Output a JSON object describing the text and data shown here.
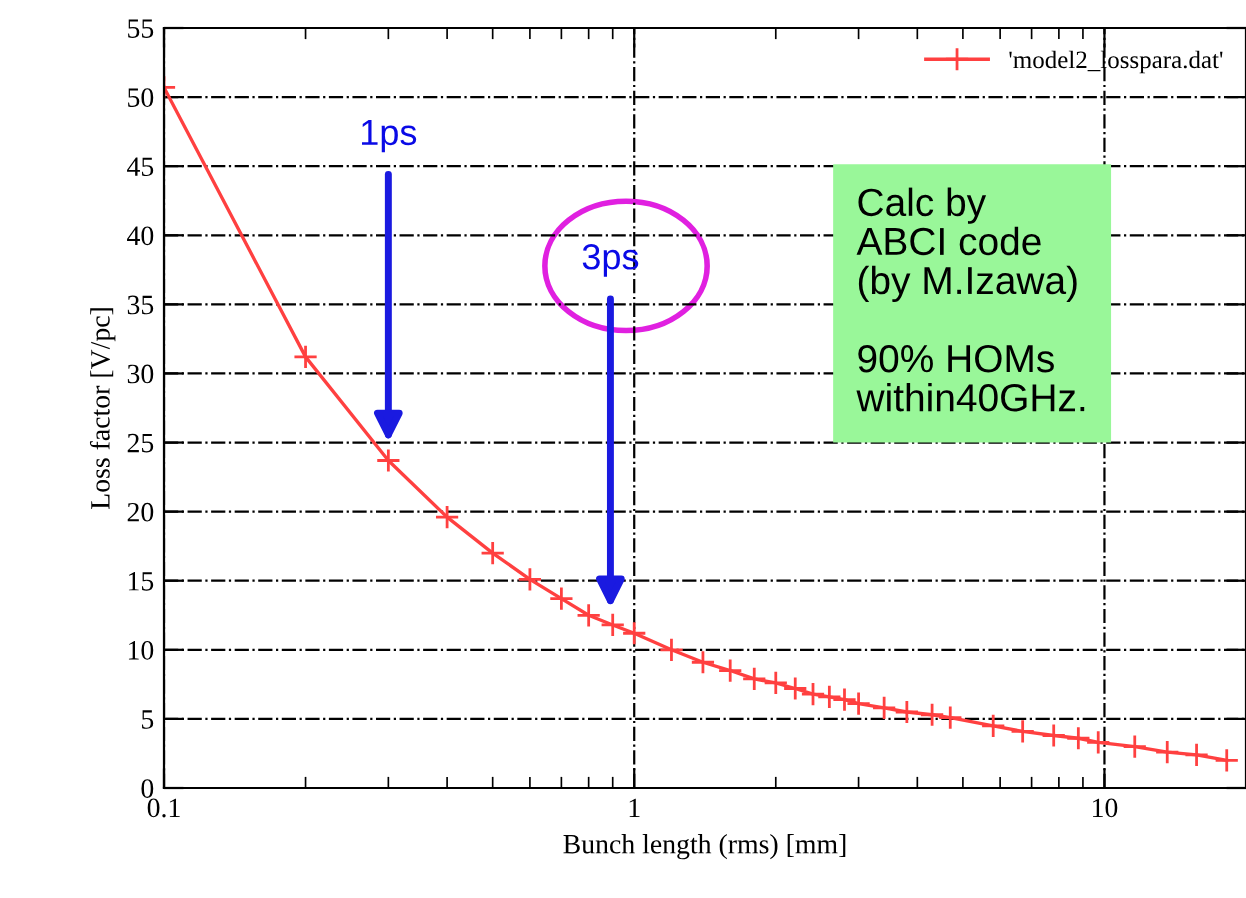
{
  "chart_data": {
    "type": "line",
    "xlabel": "Bunch length (rms) [mm]",
    "ylabel": "Loss factor [V/pc]",
    "log": "x",
    "grid": true,
    "legend": "top right",
    "marker": "cross",
    "line_style": "solid",
    "xlim": [
      0.1,
      20
    ],
    "xticks": [
      0.1,
      1,
      10
    ],
    "ylim": [
      0,
      55
    ],
    "yticks": [
      0,
      5,
      10,
      15,
      20,
      25,
      30,
      35,
      40,
      45,
      50,
      55
    ],
    "series": [
      {
        "name": "'model2_losspara.dat'",
        "color": "#ff4040",
        "x": [
          0.1,
          0.2,
          0.3,
          0.4,
          0.5,
          0.6,
          0.7,
          0.8,
          0.9,
          1.0,
          1.2,
          1.4,
          1.6,
          1.8,
          2.0,
          2.2,
          2.4,
          2.6,
          2.8,
          3.0,
          3.4,
          3.8,
          4.3,
          4.7,
          5.8,
          6.7,
          7.8,
          8.8,
          9.7,
          11.6,
          13.6,
          15.7,
          18.2
        ],
        "values": [
          50.7,
          31.2,
          23.7,
          19.6,
          17.0,
          15.1,
          13.7,
          12.5,
          11.8,
          11.2,
          10.0,
          9.1,
          8.5,
          7.9,
          7.6,
          7.2,
          6.8,
          6.6,
          6.4,
          6.1,
          5.8,
          5.5,
          5.3,
          5.1,
          4.5,
          4.1,
          3.8,
          3.6,
          3.3,
          3.0,
          2.6,
          2.4,
          2.0
        ]
      }
    ],
    "annotations": [
      {
        "text": "1ps",
        "x": 0.3,
        "y": 25
      },
      {
        "text": "3ps",
        "x": 0.89,
        "y": 13
      },
      "Calc by\nABCI code\n(by M.Izawa)\n\n90% HOMs\nwithin40GHz."
    ]
  }
}
